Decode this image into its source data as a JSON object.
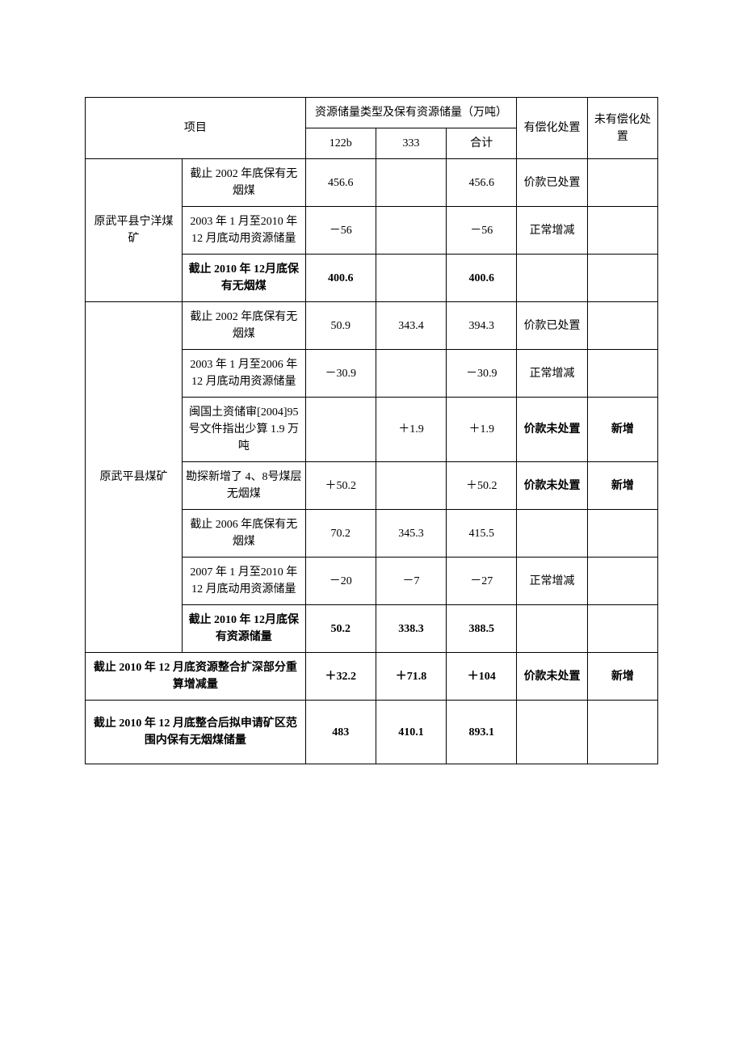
{
  "header": {
    "project": "项目",
    "reserves_group": "资源储量类型及保有资源储量（万吨）",
    "paid": "有偿化处置",
    "unpaid": "未有偿化处置",
    "c122b": "122b",
    "c333": "333",
    "csum": "合计"
  },
  "ningyang": {
    "name": "原武平县宁洋煤矿",
    "r1": {
      "label": "截止 2002 年底保有无烟煤",
      "v122b": "456.6",
      "v333": "",
      "vsum": "456.6",
      "paid": "价款已处置",
      "unpaid": ""
    },
    "r2": {
      "label": "2003 年 1 月至2010 年 12 月底动用资源储量",
      "v122b": "－56",
      "v333": "",
      "vsum": "－56",
      "paid": "正常增减",
      "unpaid": ""
    },
    "r3": {
      "label": "截止 2010 年 12月底保有无烟煤",
      "v122b": "400.6",
      "v333": "",
      "vsum": "400.6",
      "paid": "",
      "unpaid": ""
    }
  },
  "wuping": {
    "name": "原武平县煤矿",
    "r1": {
      "label": "截止 2002 年底保有无烟煤",
      "v122b": "50.9",
      "v333": "343.4",
      "vsum": "394.3",
      "paid": "价款已处置",
      "unpaid": ""
    },
    "r2": {
      "label": "2003 年 1 月至2006 年 12 月底动用资源储量",
      "v122b": "－30.9",
      "v333": "",
      "vsum": "－30.9",
      "paid": "正常增减",
      "unpaid": ""
    },
    "r3": {
      "label": "闽国土资储审[2004]95 号文件指出少算 1.9 万吨",
      "v122b": "",
      "v333": "＋1.9",
      "vsum": "＋1.9",
      "paid": "价款未处置",
      "unpaid": "新增"
    },
    "r4": {
      "label": "勘探新增了 4、8号煤层无烟煤",
      "v122b": "＋50.2",
      "v333": "",
      "vsum": "＋50.2",
      "paid": "价款未处置",
      "unpaid": "新增"
    },
    "r5": {
      "label": "截止 2006 年底保有无烟煤",
      "v122b": "70.2",
      "v333": "345.3",
      "vsum": "415.5",
      "paid": "",
      "unpaid": ""
    },
    "r6": {
      "label": "2007 年 1 月至2010 年 12 月底动用资源储量",
      "v122b": "－20",
      "v333": "－7",
      "vsum": "－27",
      "paid": "正常增减",
      "unpaid": ""
    },
    "r7": {
      "label": "截止 2010 年 12月底保有资源储量",
      "v122b": "50.2",
      "v333": "338.3",
      "vsum": "388.5",
      "paid": "",
      "unpaid": ""
    }
  },
  "recalc": {
    "label": "截止 2010 年 12 月底资源整合扩深部分重算增减量",
    "v122b": "＋32.2",
    "v333": "＋71.8",
    "vsum": "＋104",
    "paid": "价款未处置",
    "unpaid": "新增"
  },
  "total": {
    "label": "截止 2010 年 12 月底整合后拟申请矿区范围内保有无烟煤储量",
    "v122b": "483",
    "v333": "410.1",
    "vsum": "893.1",
    "paid": "",
    "unpaid": ""
  }
}
